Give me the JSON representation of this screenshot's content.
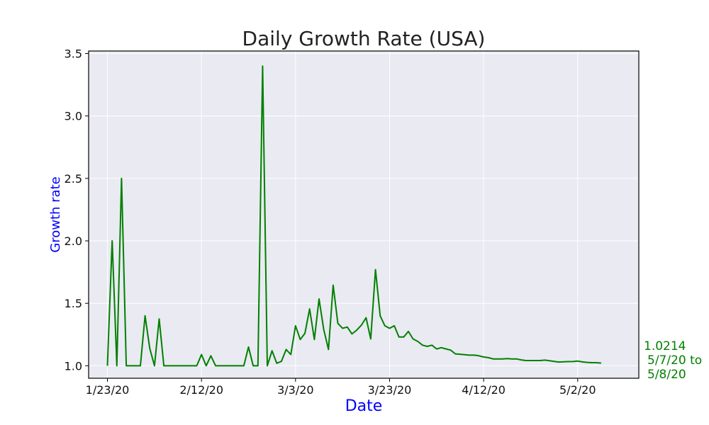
{
  "chart_data": {
    "type": "line",
    "title": "Daily Growth Rate (USA)",
    "xlabel": "Date",
    "ylabel": "Growth rate",
    "x_tick_labels": [
      "1/23/20",
      "2/12/20",
      "3/3/20",
      "3/23/20",
      "4/12/20",
      "5/2/20"
    ],
    "y_tick_labels": [
      "1.0",
      "1.5",
      "2.0",
      "2.5",
      "3.0",
      "3.5"
    ],
    "x_ticks": [
      "2020-01-23",
      "2020-02-12",
      "2020-03-03",
      "2020-03-23",
      "2020-04-12",
      "2020-05-02"
    ],
    "y_ticks": [
      1.0,
      1.5,
      2.0,
      2.5,
      3.0,
      3.5
    ],
    "xlim": [
      "2020-01-19",
      "2020-05-15"
    ],
    "ylim": [
      0.9,
      3.52
    ],
    "grid": true,
    "colors": {
      "line": "#008000",
      "plot_bg": "#eaeaf2",
      "axis_label": "#0000ff",
      "annotation": "#008000"
    },
    "annotation": {
      "value": "1.0214",
      "line2": "5/7/20 to",
      "line3": "5/8/20"
    },
    "series": [
      {
        "x": [
          "2020-01-23",
          "2020-01-24",
          "2020-01-25",
          "2020-01-26",
          "2020-01-27",
          "2020-01-28",
          "2020-01-29",
          "2020-01-30",
          "2020-01-31",
          "2020-02-01",
          "2020-02-02",
          "2020-02-03",
          "2020-02-04",
          "2020-02-05",
          "2020-02-06",
          "2020-02-07",
          "2020-02-08",
          "2020-02-09",
          "2020-02-10",
          "2020-02-11",
          "2020-02-12",
          "2020-02-13",
          "2020-02-14",
          "2020-02-15",
          "2020-02-16",
          "2020-02-17",
          "2020-02-18",
          "2020-02-19",
          "2020-02-20",
          "2020-02-21",
          "2020-02-22",
          "2020-02-23",
          "2020-02-24",
          "2020-02-25",
          "2020-02-26",
          "2020-02-27",
          "2020-02-28",
          "2020-02-29",
          "2020-03-01",
          "2020-03-02",
          "2020-03-03",
          "2020-03-04",
          "2020-03-05",
          "2020-03-06",
          "2020-03-07",
          "2020-03-08",
          "2020-03-09",
          "2020-03-10",
          "2020-03-11",
          "2020-03-12",
          "2020-03-13",
          "2020-03-14",
          "2020-03-15",
          "2020-03-16",
          "2020-03-17",
          "2020-03-18",
          "2020-03-19",
          "2020-03-20",
          "2020-03-21",
          "2020-03-22",
          "2020-03-23",
          "2020-03-24",
          "2020-03-25",
          "2020-03-26",
          "2020-03-27",
          "2020-03-28",
          "2020-03-29",
          "2020-03-30",
          "2020-03-31",
          "2020-04-01",
          "2020-04-02",
          "2020-04-03",
          "2020-04-04",
          "2020-04-05",
          "2020-04-06",
          "2020-04-07",
          "2020-04-08",
          "2020-04-09",
          "2020-04-10",
          "2020-04-11",
          "2020-04-12",
          "2020-04-13",
          "2020-04-14",
          "2020-04-15",
          "2020-04-16",
          "2020-04-17",
          "2020-04-18",
          "2020-04-19",
          "2020-04-20",
          "2020-04-21",
          "2020-04-22",
          "2020-04-23",
          "2020-04-24",
          "2020-04-25",
          "2020-04-26",
          "2020-04-27",
          "2020-04-28",
          "2020-04-29",
          "2020-04-30",
          "2020-05-01",
          "2020-05-02",
          "2020-05-03",
          "2020-05-04",
          "2020-05-05",
          "2020-05-06",
          "2020-05-07"
        ],
        "y": [
          1.0,
          2.0,
          1.0,
          2.5,
          1.0,
          1.0,
          1.0,
          1.0,
          1.4,
          1.14,
          1.0,
          1.375,
          1.0,
          1.0,
          1.0,
          1.0,
          1.0,
          1.0,
          1.0,
          1.0,
          1.09,
          1.0,
          1.08,
          1.0,
          1.0,
          1.0,
          1.0,
          1.0,
          1.0,
          1.0,
          1.15,
          1.0,
          1.0,
          3.4,
          1.0,
          1.12,
          1.02,
          1.035,
          1.13,
          1.09,
          1.32,
          1.21,
          1.26,
          1.455,
          1.21,
          1.535,
          1.29,
          1.13,
          1.645,
          1.34,
          1.3,
          1.31,
          1.255,
          1.285,
          1.325,
          1.385,
          1.215,
          1.77,
          1.4,
          1.32,
          1.3,
          1.32,
          1.23,
          1.23,
          1.275,
          1.215,
          1.195,
          1.165,
          1.155,
          1.165,
          1.135,
          1.145,
          1.135,
          1.125,
          1.095,
          1.092,
          1.088,
          1.085,
          1.085,
          1.08,
          1.07,
          1.065,
          1.055,
          1.055,
          1.055,
          1.057,
          1.055,
          1.055,
          1.047,
          1.042,
          1.042,
          1.042,
          1.042,
          1.045,
          1.04,
          1.035,
          1.03,
          1.032,
          1.033,
          1.034,
          1.037,
          1.031,
          1.027,
          1.025,
          1.025,
          1.0214
        ]
      }
    ]
  }
}
